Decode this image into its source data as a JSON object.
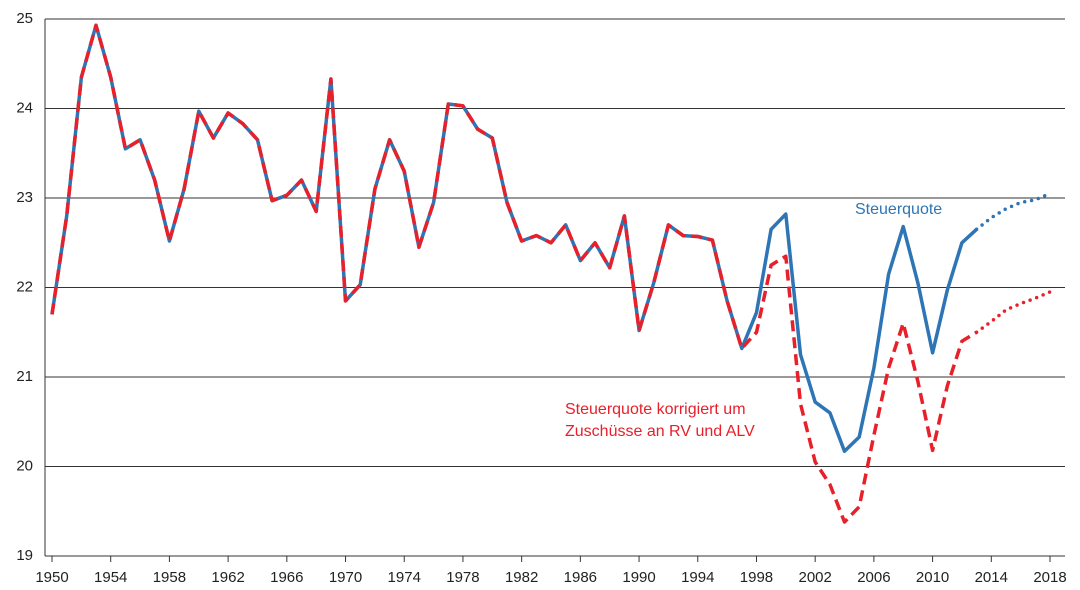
{
  "chart_data": {
    "type": "line",
    "x": [
      1950,
      1951,
      1952,
      1953,
      1954,
      1955,
      1956,
      1957,
      1958,
      1959,
      1960,
      1961,
      1962,
      1963,
      1964,
      1965,
      1966,
      1967,
      1968,
      1969,
      1970,
      1971,
      1972,
      1973,
      1974,
      1975,
      1976,
      1977,
      1978,
      1979,
      1980,
      1981,
      1982,
      1983,
      1984,
      1985,
      1986,
      1987,
      1988,
      1989,
      1990,
      1991,
      1992,
      1993,
      1994,
      1995,
      1996,
      1997,
      1998,
      1999,
      2000,
      2001,
      2002,
      2003,
      2004,
      2005,
      2006,
      2007,
      2008,
      2009,
      2010,
      2011,
      2012,
      2013,
      2014,
      2015,
      2016,
      2017,
      2018
    ],
    "series": [
      {
        "name": "Steuerquote",
        "color": "#2e75b6",
        "style": "solid",
        "values": [
          21.7,
          22.8,
          24.35,
          24.93,
          24.35,
          23.55,
          23.65,
          23.2,
          22.52,
          23.1,
          23.97,
          23.67,
          23.95,
          23.83,
          23.65,
          22.97,
          23.03,
          23.2,
          22.85,
          24.33,
          21.85,
          22.03,
          23.1,
          23.65,
          23.3,
          22.45,
          22.95,
          24.05,
          24.03,
          23.77,
          23.67,
          22.95,
          22.52,
          22.58,
          22.5,
          22.7,
          22.3,
          22.5,
          22.22,
          22.8,
          21.52,
          22.05,
          22.7,
          22.58,
          22.57,
          22.53,
          21.85,
          21.32,
          21.72,
          22.65,
          22.82,
          21.25,
          20.72,
          20.6,
          20.17,
          20.33,
          21.1,
          22.15,
          22.68,
          22.05,
          21.27,
          21.97,
          22.5,
          22.65,
          22.78,
          22.88,
          22.95,
          22.98,
          23.05
        ]
      },
      {
        "name": "Steuerquote korrigiert um Zuschüsse an RV und ALV",
        "color": "#e8202a",
        "style": "dashed",
        "values": [
          21.7,
          22.8,
          24.35,
          24.93,
          24.35,
          23.55,
          23.65,
          23.2,
          22.52,
          23.1,
          23.97,
          23.67,
          23.95,
          23.83,
          23.65,
          22.97,
          23.03,
          23.2,
          22.85,
          24.33,
          21.85,
          22.03,
          23.1,
          23.65,
          23.3,
          22.45,
          22.95,
          24.05,
          24.03,
          23.77,
          23.67,
          22.95,
          22.52,
          22.58,
          22.5,
          22.7,
          22.3,
          22.5,
          22.22,
          22.8,
          21.52,
          22.05,
          22.7,
          22.58,
          22.57,
          22.53,
          21.85,
          21.32,
          21.5,
          22.25,
          22.35,
          20.7,
          20.05,
          19.8,
          19.38,
          19.55,
          20.35,
          21.1,
          21.6,
          20.95,
          20.18,
          20.9,
          21.4,
          21.5,
          21.62,
          21.75,
          21.82,
          21.88,
          21.95
        ]
      }
    ],
    "projection_from": 2013,
    "xlim": [
      1950,
      2018
    ],
    "xticks": [
      1950,
      1954,
      1958,
      1962,
      1966,
      1970,
      1974,
      1978,
      1982,
      1986,
      1990,
      1994,
      1998,
      2002,
      2006,
      2010,
      2014,
      2018
    ],
    "ylim": [
      19,
      25
    ],
    "yticks": [
      19,
      20,
      21,
      22,
      23,
      24,
      25
    ],
    "grid": true
  }
}
